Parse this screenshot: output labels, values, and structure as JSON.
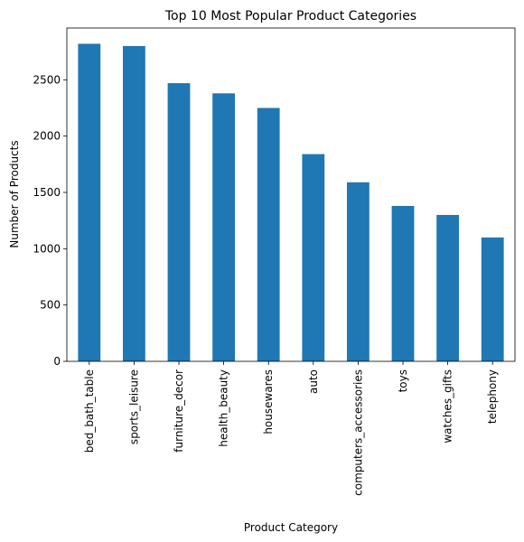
{
  "chart_data": {
    "type": "bar",
    "title": "Top 10 Most Popular Product Categories",
    "xlabel": "Product Category",
    "ylabel": "Number of Products",
    "categories": [
      "bed_bath_table",
      "sports_leisure",
      "furniture_decor",
      "health_beauty",
      "housewares",
      "auto",
      "computers_accessories",
      "toys",
      "watches_gifts",
      "telephony"
    ],
    "values": [
      2820,
      2800,
      2470,
      2380,
      2250,
      1840,
      1590,
      1380,
      1300,
      1100
    ],
    "yticks": [
      0,
      500,
      1000,
      1500,
      2000,
      2500
    ],
    "ylim": [
      0,
      2960
    ],
    "grid": false,
    "bar_color": "#1f77b4"
  }
}
